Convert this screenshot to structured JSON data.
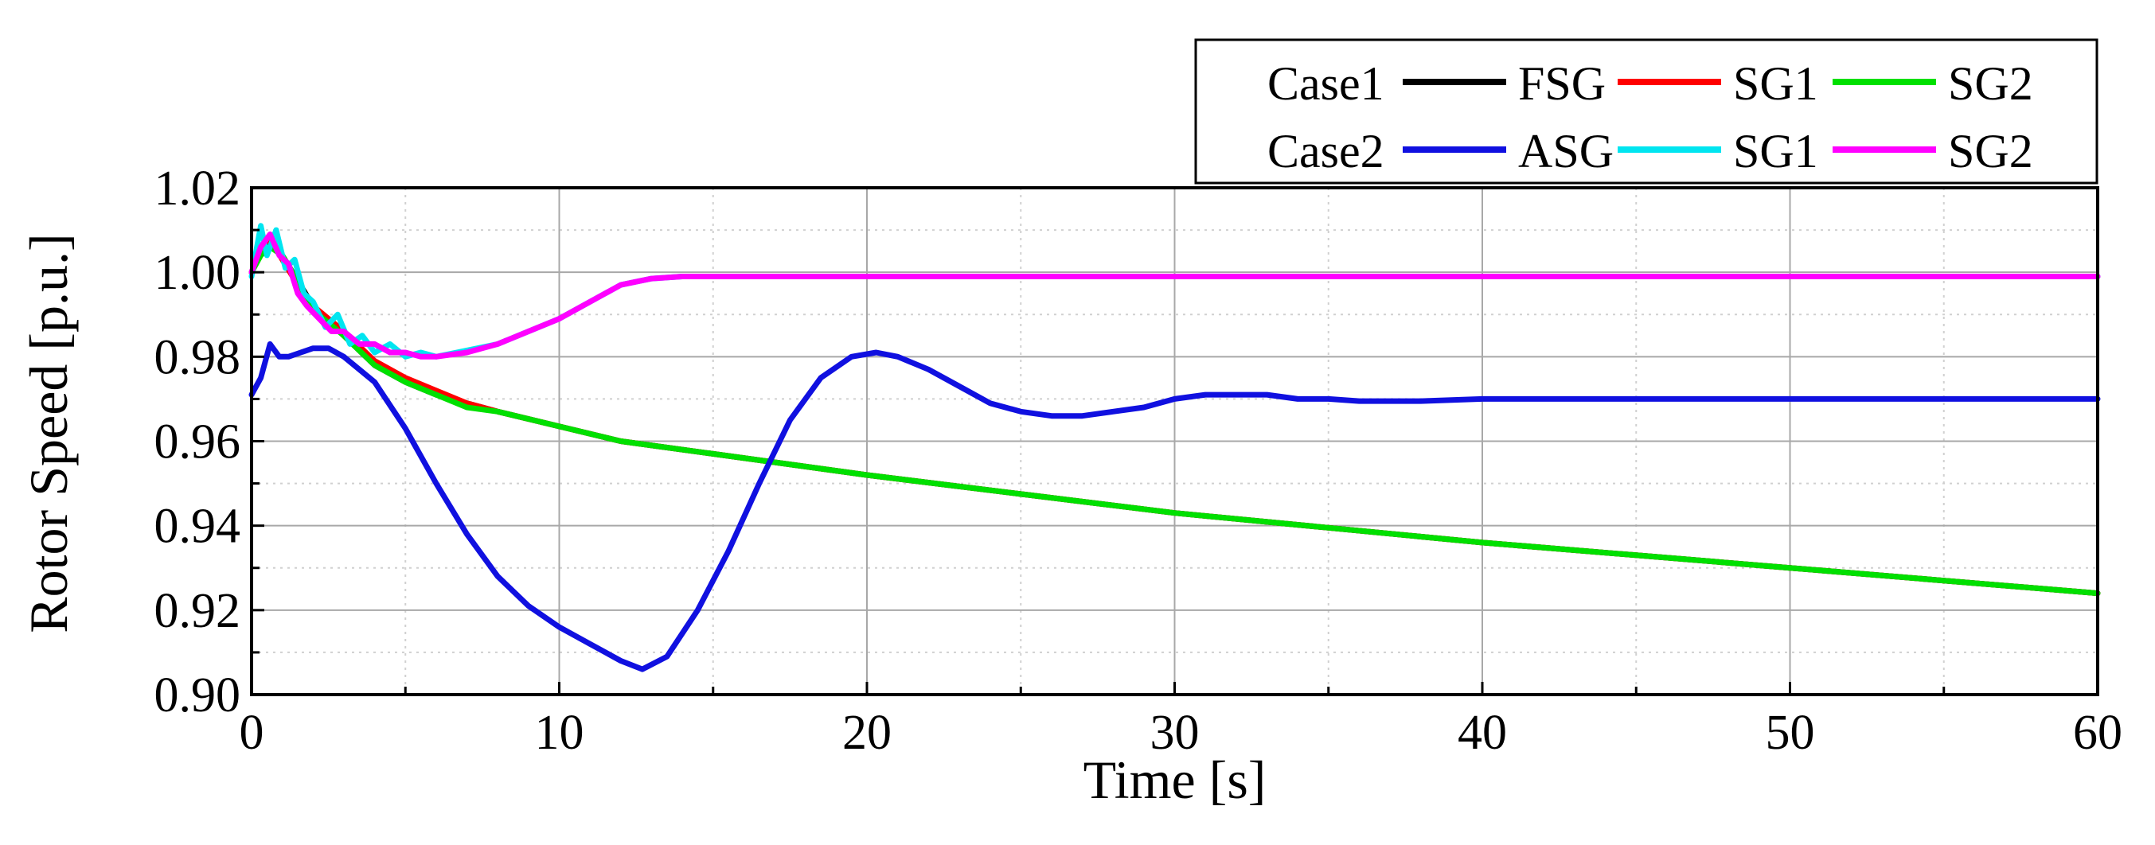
{
  "chart_data": {
    "type": "line",
    "title": "",
    "xlabel": "Time [s]",
    "ylabel": "Rotor Speed [p.u.]",
    "xlim": [
      0,
      60
    ],
    "ylim": [
      0.9,
      1.02
    ],
    "xticks": [
      0,
      10,
      20,
      30,
      40,
      50,
      60
    ],
    "xtick_labels": [
      "0",
      "10",
      "20",
      "30",
      "40",
      "50",
      "60"
    ],
    "yticks": [
      0.9,
      0.92,
      0.94,
      0.96,
      0.98,
      1.0,
      1.02
    ],
    "ytick_labels": [
      "0.90",
      "0.92",
      "0.94",
      "0.96",
      "0.98",
      "1.00",
      "1.02"
    ],
    "grid": true,
    "legend_position": "top-right",
    "legend": [
      {
        "case": "Case1",
        "entries": [
          {
            "name": "FSG",
            "color": "#000000"
          },
          {
            "name": "SG1",
            "color": "#ff0000"
          },
          {
            "name": "SG2",
            "color": "#00e000"
          }
        ]
      },
      {
        "case": "Case2",
        "entries": [
          {
            "name": "ASG",
            "color": "#1010e0"
          },
          {
            "name": "SG1",
            "color": "#00e5f0"
          },
          {
            "name": "SG2",
            "color": "#ff00ff"
          }
        ]
      }
    ],
    "series": [
      {
        "id": "case1-fsg",
        "case": "Case1",
        "name": "FSG",
        "color": "#000000",
        "x": [
          0,
          0.3,
          0.6,
          1,
          1.5,
          2,
          3,
          4,
          5,
          6,
          7,
          8,
          10,
          12,
          15,
          20,
          25,
          30,
          35,
          40,
          45,
          50,
          55,
          60
        ],
        "y": [
          1.0,
          1.005,
          1.007,
          1.004,
          0.998,
          0.992,
          0.985,
          0.978,
          0.974,
          0.971,
          0.969,
          0.967,
          0.9635,
          0.96,
          0.957,
          0.952,
          0.9475,
          0.943,
          0.9395,
          0.936,
          0.933,
          0.93,
          0.927,
          0.924
        ]
      },
      {
        "id": "case1-sg1",
        "case": "Case1",
        "name": "SG1",
        "color": "#ff0000",
        "x": [
          0,
          0.3,
          0.6,
          1,
          1.5,
          2,
          3,
          4,
          5,
          6,
          7,
          8,
          10,
          12,
          15,
          20,
          25,
          30,
          35,
          40,
          45,
          50,
          55,
          60
        ],
        "y": [
          1.0,
          1.006,
          1.008,
          1.003,
          0.997,
          0.992,
          0.986,
          0.979,
          0.975,
          0.972,
          0.969,
          0.967,
          0.9635,
          0.96,
          0.957,
          0.952,
          0.9475,
          0.943,
          0.9395,
          0.936,
          0.933,
          0.93,
          0.927,
          0.924
        ]
      },
      {
        "id": "case1-sg2",
        "case": "Case1",
        "name": "SG2",
        "color": "#00e000",
        "x": [
          0,
          0.3,
          0.6,
          1,
          1.5,
          2,
          3,
          4,
          5,
          6,
          7,
          8,
          10,
          12,
          15,
          20,
          25,
          30,
          35,
          40,
          45,
          50,
          55,
          60
        ],
        "y": [
          1.0,
          1.004,
          1.006,
          1.004,
          0.998,
          0.991,
          0.985,
          0.978,
          0.974,
          0.971,
          0.968,
          0.967,
          0.9635,
          0.96,
          0.957,
          0.952,
          0.9475,
          0.943,
          0.9395,
          0.936,
          0.933,
          0.93,
          0.927,
          0.924
        ]
      },
      {
        "id": "case2-asg",
        "case": "Case2",
        "name": "ASG",
        "color": "#1010e0",
        "x": [
          0,
          0.3,
          0.6,
          0.9,
          1.2,
          1.6,
          2,
          2.5,
          3,
          4,
          5,
          6,
          7,
          8,
          9,
          10,
          11,
          12,
          12.7,
          13.5,
          14.5,
          15.5,
          16.5,
          17.5,
          18.5,
          19.5,
          20.3,
          21,
          22,
          23,
          24,
          25,
          26,
          27,
          28,
          29,
          30,
          31,
          32,
          33,
          34,
          35,
          36,
          38,
          40,
          42,
          45,
          50,
          55,
          60
        ],
        "y": [
          0.971,
          0.975,
          0.983,
          0.98,
          0.98,
          0.981,
          0.982,
          0.982,
          0.98,
          0.974,
          0.963,
          0.95,
          0.938,
          0.928,
          0.921,
          0.916,
          0.912,
          0.908,
          0.906,
          0.909,
          0.92,
          0.934,
          0.95,
          0.965,
          0.975,
          0.98,
          0.981,
          0.98,
          0.977,
          0.973,
          0.969,
          0.967,
          0.966,
          0.966,
          0.967,
          0.968,
          0.97,
          0.971,
          0.971,
          0.971,
          0.97,
          0.97,
          0.9695,
          0.9695,
          0.97,
          0.97,
          0.97,
          0.97,
          0.97,
          0.97
        ]
      },
      {
        "id": "case2-sg1",
        "case": "Case2",
        "name": "SG1",
        "color": "#00e5f0",
        "x": [
          0,
          0.3,
          0.5,
          0.8,
          1.1,
          1.4,
          1.7,
          2,
          2.4,
          2.8,
          3.2,
          3.6,
          4,
          4.5,
          5,
          5.5,
          6,
          7,
          8,
          9,
          10,
          11,
          12,
          13,
          14,
          15,
          16,
          20,
          25,
          30,
          40,
          50,
          60
        ],
        "y": [
          0.999,
          1.011,
          1.004,
          1.01,
          1.001,
          1.003,
          0.995,
          0.993,
          0.987,
          0.99,
          0.983,
          0.985,
          0.981,
          0.983,
          0.98,
          0.981,
          0.98,
          0.9815,
          0.983,
          0.986,
          0.989,
          0.993,
          0.997,
          0.9985,
          0.999,
          0.999,
          0.999,
          0.999,
          0.999,
          0.999,
          0.999,
          0.999,
          0.999
        ]
      },
      {
        "id": "case2-sg2",
        "case": "Case2",
        "name": "SG2",
        "color": "#ff00ff",
        "x": [
          0,
          0.3,
          0.6,
          0.9,
          1.2,
          1.5,
          1.8,
          2.2,
          2.6,
          3,
          3.5,
          4,
          4.5,
          5,
          5.5,
          6,
          7,
          8,
          9,
          10,
          11,
          12,
          13,
          14,
          15,
          16,
          20,
          25,
          30,
          40,
          50,
          60
        ],
        "y": [
          1.0,
          1.006,
          1.009,
          1.004,
          1.002,
          0.995,
          0.992,
          0.989,
          0.986,
          0.986,
          0.983,
          0.983,
          0.981,
          0.981,
          0.98,
          0.98,
          0.981,
          0.983,
          0.986,
          0.989,
          0.993,
          0.997,
          0.9985,
          0.999,
          0.999,
          0.999,
          0.999,
          0.999,
          0.999,
          0.999,
          0.999,
          0.999
        ]
      }
    ]
  }
}
